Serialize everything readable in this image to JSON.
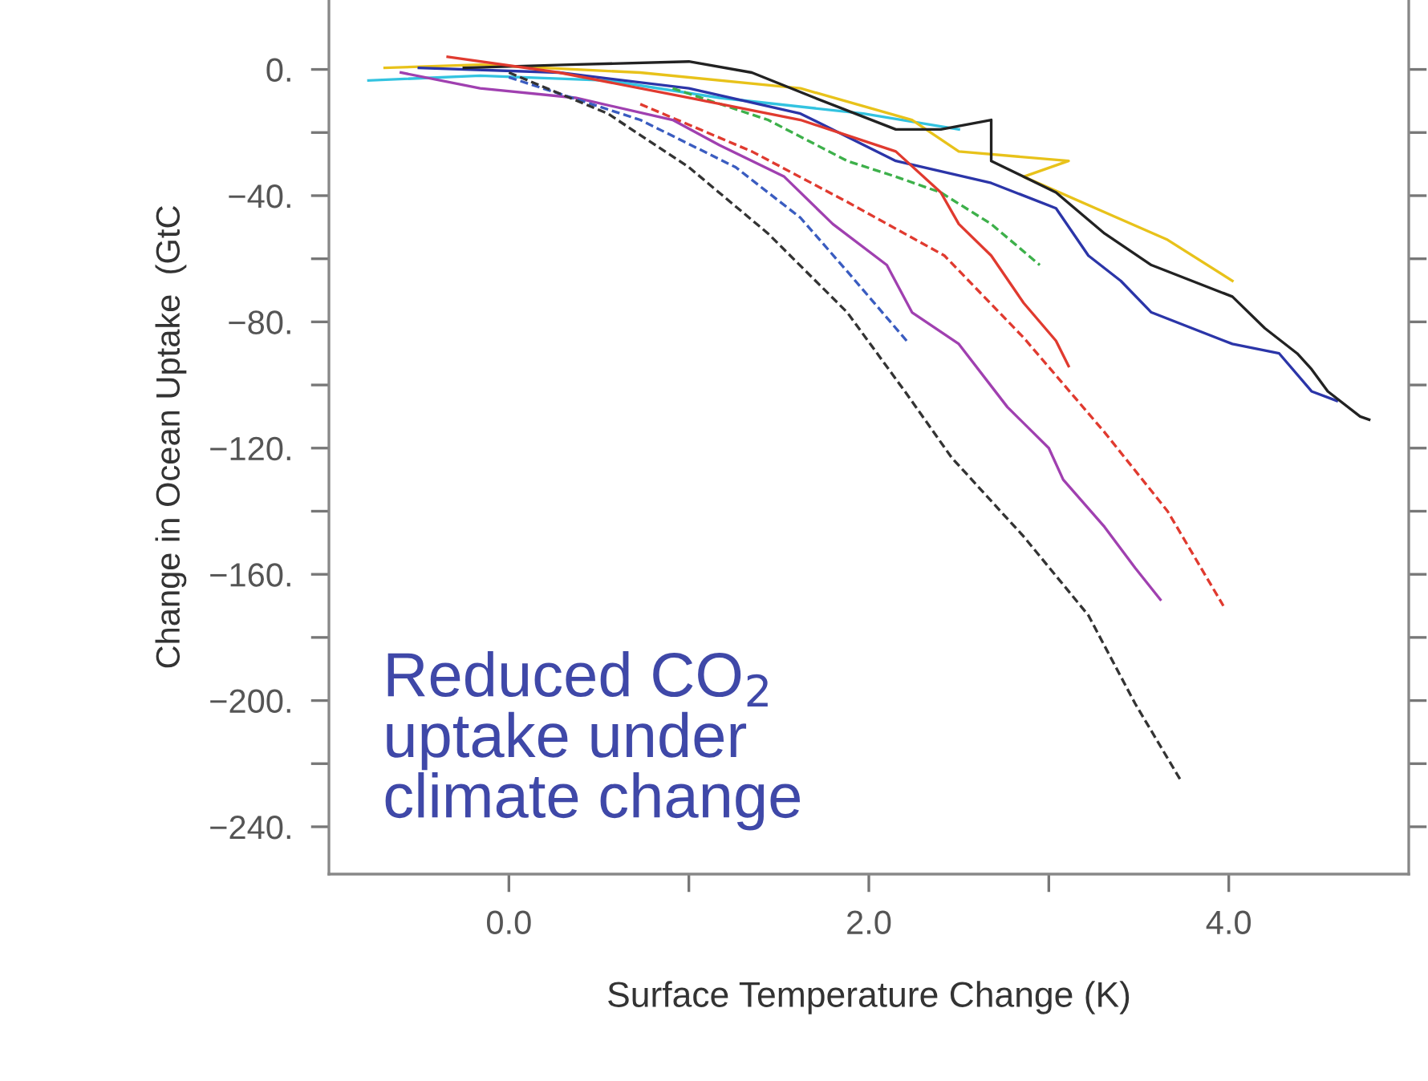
{
  "chart_data": {
    "type": "line",
    "xlabel": "Surface Temperature Change (K)",
    "ylabel": "Change in Ocean Uptake  (GtC",
    "annotations": [
      "Reduced CO$_{2}$\nuptake under\nclimate change"
    ],
    "xlim": [
      -1.0,
      5.0
    ],
    "ylim": [
      -255,
      22
    ],
    "xticks": [
      {
        "value": 0,
        "label": "0.0"
      },
      {
        "value": 1,
        "label": null
      },
      {
        "value": 2,
        "label": "2.0"
      },
      {
        "value": 3,
        "label": null
      },
      {
        "value": 4,
        "label": "4.0"
      }
    ],
    "yticks": [
      {
        "value": 0,
        "label": "0."
      },
      {
        "value": -20,
        "label": null
      },
      {
        "value": -40,
        "label": "−40."
      },
      {
        "value": -60,
        "label": null
      },
      {
        "value": -80,
        "label": "−80."
      },
      {
        "value": -100,
        "label": null
      },
      {
        "value": -120,
        "label": "−120."
      },
      {
        "value": -140,
        "label": null
      },
      {
        "value": -160,
        "label": "−160."
      },
      {
        "value": -180,
        "label": null
      },
      {
        "value": -200,
        "label": "−200."
      },
      {
        "value": -220,
        "label": null
      },
      {
        "value": -240,
        "label": "−240."
      }
    ],
    "grid": false,
    "legend": false,
    "marker": "none",
    "series": [
      {
        "color": "#33c3e0",
        "line_style": "solid",
        "x": [
          -0.78,
          -0.16,
          0.55,
          1.17,
          1.97,
          2.5
        ],
        "values": [
          -3.5,
          -2,
          -3.5,
          -9,
          -14,
          -19
        ]
      },
      {
        "color": "#e8c21a",
        "line_style": "solid",
        "x": [
          -0.69,
          -0.16,
          0.73,
          1.62,
          2.24,
          2.5,
          3.11,
          2.86,
          3.38,
          3.66,
          4.02
        ],
        "values": [
          0.5,
          1.5,
          -1,
          -6,
          -16,
          -26,
          -29,
          -34,
          -47,
          -54,
          -67
        ]
      },
      {
        "color": "#2b35a8",
        "line_style": "solid",
        "x": [
          -0.5,
          0.28,
          1.0,
          1.62,
          2.15,
          2.68,
          3.04,
          3.22,
          3.4,
          3.57,
          4.02,
          4.28,
          4.46,
          4.6
        ],
        "values": [
          0.5,
          -1,
          -6,
          -14,
          -29,
          -36,
          -44,
          -59,
          -67,
          -77,
          -87,
          -90,
          -102,
          -105
        ]
      },
      {
        "color": "#222222",
        "line_style": "solid",
        "x": [
          -0.25,
          0.34,
          1.0,
          1.35,
          1.7,
          2.15,
          2.4,
          2.68,
          2.68,
          3.04,
          3.31,
          3.57,
          4.02,
          4.2,
          4.38,
          4.46,
          4.55,
          4.73,
          4.78
        ],
        "values": [
          0.5,
          1.5,
          2.5,
          -1,
          -9,
          -19,
          -19,
          -16,
          -29,
          -39,
          -52,
          -62,
          -72,
          -82,
          -90,
          -95,
          -102,
          -110,
          -111
        ]
      },
      {
        "color": "#3db04a",
        "line_style": "dashed",
        "x": [
          0.91,
          1.44,
          1.88,
          2.15,
          2.4,
          2.68,
          2.95
        ],
        "values": [
          -6,
          -16,
          -29,
          -34,
          -39,
          -49,
          -62
        ]
      },
      {
        "color": "#e03a2f",
        "line_style": "solid",
        "x": [
          -0.34,
          0.28,
          1.0,
          1.62,
          2.15,
          2.4,
          2.5,
          2.68,
          2.86,
          3.04,
          3.11
        ],
        "values": [
          4,
          -1,
          -9,
          -16,
          -26,
          -39,
          -49,
          -59,
          -74,
          -86,
          -94
        ]
      },
      {
        "color": "#e03a2f",
        "line_style": "dashed",
        "x": [
          0.73,
          1.35,
          1.88,
          2.42,
          2.86,
          3.31,
          3.66,
          3.97
        ],
        "values": [
          -11,
          -26,
          -42,
          -59,
          -85,
          -115,
          -140,
          -170
        ]
      },
      {
        "color": "#a040b0",
        "line_style": "solid",
        "x": [
          -0.6,
          -0.16,
          0.37,
          0.91,
          1.17,
          1.53,
          1.8,
          2.1,
          2.24,
          2.5,
          2.77,
          3.0,
          3.08,
          3.31,
          3.48,
          3.62
        ],
        "values": [
          -1,
          -6,
          -9,
          -16,
          -24,
          -34,
          -49,
          -62,
          -77,
          -87,
          -107,
          -120,
          -130,
          -145,
          -158,
          -168
        ]
      },
      {
        "color": "#3a5cc0",
        "line_style": "dashed",
        "x": [
          0,
          0.73,
          1.26,
          1.62,
          1.88,
          2.21
        ],
        "values": [
          -2.5,
          -16,
          -31,
          -47,
          -64,
          -86
        ]
      },
      {
        "color": "#333333",
        "line_style": "dashed",
        "x": [
          0,
          0.55,
          1.0,
          1.44,
          1.88,
          2.2,
          2.46,
          2.86,
          3.22,
          3.48,
          3.73
        ],
        "values": [
          -1,
          -14,
          -31,
          -52,
          -77,
          -102,
          -123,
          -148,
          -173,
          -201,
          -225
        ]
      }
    ]
  }
}
